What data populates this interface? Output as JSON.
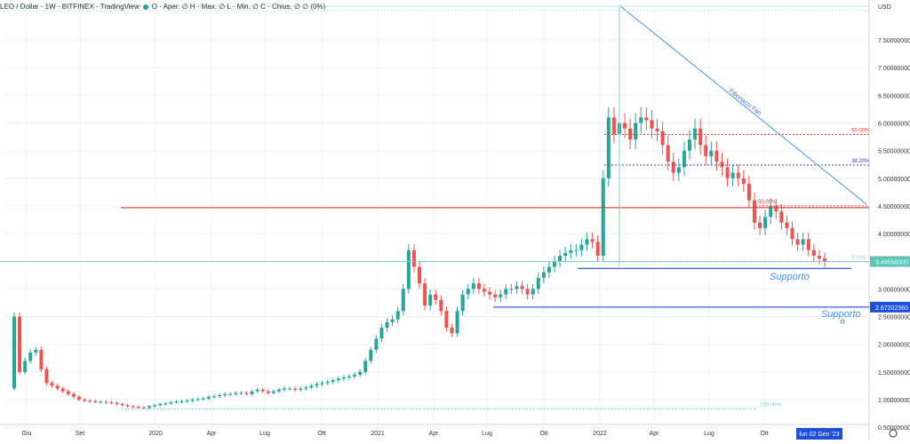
{
  "header": {
    "symbol": "LEO / Dollar · 1W · BITFINEX · TradingView",
    "ohlc": "O · Aper. ∅ H · Max. ∅ L · Min. ∅ C · Chius. ∅ ∅ (0%)"
  },
  "axis": {
    "currency": "USD",
    "current_price": "3.49550000",
    "support_price": "2.67202360",
    "date_badge": "lun 02 Gen '23"
  },
  "chart_data": {
    "type": "candlestick",
    "title": "",
    "ylim": [
      0.65,
      8.1
    ],
    "y_ticks": [
      "7.50000000",
      "7.00000000",
      "6.50000000",
      "6.00000000",
      "5.50000000",
      "5.00000000",
      "4.50000000",
      "4.00000000",
      "3.00000000",
      "2.50000000",
      "2.00000000",
      "1.50000000",
      "1.00000000",
      "0.50000000"
    ],
    "x_ticks": [
      "Giu",
      "Set",
      "2020",
      "Apr",
      "Lug",
      "Ott",
      "2021",
      "Apr",
      "Lug",
      "Ott",
      "2022",
      "Apr",
      "Lug",
      "Ott"
    ],
    "horizontal_lines": [
      {
        "name": "resistance",
        "price": 4.47,
        "color": "#e53935"
      },
      {
        "name": "support-1",
        "price": 3.37,
        "color": "#1e4fd8"
      },
      {
        "name": "support-2",
        "price": 2.672,
        "color": "#1e4fd8"
      },
      {
        "name": "current",
        "price": 3.4955,
        "color": "#7dd3c8"
      }
    ],
    "fib_levels": [
      {
        "label": "50.00%",
        "price": 5.79,
        "color": "#e53935"
      },
      {
        "label": "38.20%",
        "price": 5.24,
        "color": "#3949ab"
      },
      {
        "label": "50.00%",
        "price": 4.5,
        "color": "#e53935"
      },
      {
        "label": "0.00%",
        "price": 3.49,
        "color": "#b0bec5"
      },
      {
        "label": "100.00%",
        "price": 0.83,
        "color": "#7dd3c8"
      }
    ],
    "annotations": [
      "Fibonacci Fan",
      "Supporto",
      "Supporto"
    ],
    "candles_weekly_close": [
      2.5,
      1.5,
      1.7,
      1.85,
      1.9,
      1.55,
      1.3,
      1.25,
      1.2,
      1.15,
      1.1,
      1.05,
      1.0,
      0.98,
      0.97,
      0.96,
      0.96,
      0.95,
      0.94,
      0.92,
      0.9,
      0.88,
      0.87,
      0.86,
      0.85,
      0.88,
      0.9,
      0.92,
      0.93,
      0.95,
      0.96,
      0.97,
      0.98,
      1.0,
      1.01,
      1.02,
      1.05,
      1.06,
      1.08,
      1.1,
      1.1,
      1.12,
      1.12,
      1.1,
      1.15,
      1.18,
      1.15,
      1.12,
      1.15,
      1.18,
      1.2,
      1.2,
      1.18,
      1.2,
      1.22,
      1.25,
      1.28,
      1.3,
      1.32,
      1.35,
      1.38,
      1.4,
      1.42,
      1.45,
      1.5,
      1.7,
      1.9,
      2.1,
      2.3,
      2.4,
      2.45,
      2.6,
      3.0,
      3.7,
      3.4,
      3.1,
      2.7,
      2.9,
      2.8,
      2.6,
      2.3,
      2.2,
      2.6,
      2.9,
      3.0,
      3.1,
      3.0,
      2.95,
      2.9,
      2.85,
      2.9,
      3.0,
      3.0,
      3.05,
      3.0,
      2.9,
      3.0,
      3.2,
      3.3,
      3.4,
      3.5,
      3.6,
      3.65,
      3.7,
      3.7,
      3.8,
      3.9,
      3.85,
      3.6,
      5.0,
      6.1,
      5.8,
      6.0,
      5.9,
      5.7,
      6.0,
      6.1,
      6.05,
      5.9,
      5.85,
      5.6,
      5.3,
      5.1,
      5.2,
      5.5,
      5.7,
      5.9,
      5.6,
      5.4,
      5.5,
      5.3,
      5.2,
      5.0,
      5.1,
      5.0,
      4.9,
      4.6,
      4.2,
      4.1,
      4.3,
      4.5,
      4.4,
      4.2,
      4.1,
      3.9,
      3.8,
      3.9,
      3.7,
      3.6,
      3.55,
      3.5
    ]
  }
}
